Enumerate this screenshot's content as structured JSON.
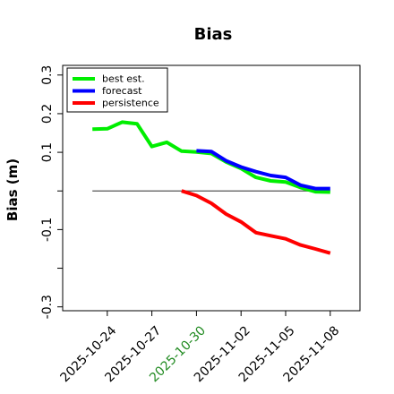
{
  "chart_data": {
    "type": "line",
    "title": "Bias",
    "xlabel": "",
    "ylabel": "Bias (m)",
    "x_ticks": [
      {
        "label": "2025-10-24",
        "date": "2025-10-24",
        "color": "#000000"
      },
      {
        "label": "2025-10-27",
        "date": "2025-10-27",
        "color": "#000000"
      },
      {
        "label": "2025-10-30",
        "date": "2025-10-30",
        "color": "#228B22"
      },
      {
        "label": "2025-11-02",
        "date": "2025-11-02",
        "color": "#000000"
      },
      {
        "label": "2025-11-05",
        "date": "2025-11-05",
        "color": "#000000"
      },
      {
        "label": "2025-11-08",
        "date": "2025-11-08",
        "color": "#000000"
      }
    ],
    "y_ticks": [
      {
        "label": "0.3",
        "value": 0.3
      },
      {
        "label": "0.2",
        "value": 0.2
      },
      {
        "label": "0.1",
        "value": 0.1
      },
      {
        "label": "",
        "value": 0.0
      },
      {
        "label": "-0.1",
        "value": -0.1
      },
      {
        "label": "",
        "value": -0.2
      },
      {
        "label": "-0.3",
        "value": -0.3
      }
    ],
    "xlim": [
      "2025-10-21",
      "2025-11-10"
    ],
    "ylim": [
      -0.31,
      0.325
    ],
    "grid": false,
    "legend_position": "top-left",
    "reference_line": {
      "y": 0.0,
      "x_start": "2025-10-23",
      "x_end": "2025-11-08",
      "color": "#555555"
    },
    "series": [
      {
        "name": "best est.",
        "color": "#00ee00",
        "x": [
          "2025-10-23",
          "2025-10-24",
          "2025-10-25",
          "2025-10-26",
          "2025-10-27",
          "2025-10-28",
          "2025-10-29",
          "2025-10-30",
          "2025-10-31",
          "2025-11-01",
          "2025-11-02",
          "2025-11-03",
          "2025-11-04",
          "2025-11-05",
          "2025-11-06",
          "2025-11-07",
          "2025-11-08"
        ],
        "y": [
          0.16,
          0.161,
          0.178,
          0.174,
          0.115,
          0.126,
          0.103,
          0.101,
          0.097,
          0.075,
          0.058,
          0.035,
          0.026,
          0.023,
          0.009,
          -0.002,
          -0.003
        ]
      },
      {
        "name": "forecast",
        "color": "#0000ff",
        "x": [
          "2025-10-30",
          "2025-10-31",
          "2025-11-01",
          "2025-11-02",
          "2025-11-03",
          "2025-11-04",
          "2025-11-05",
          "2025-11-06",
          "2025-11-07",
          "2025-11-08"
        ],
        "y": [
          0.104,
          0.102,
          0.078,
          0.062,
          0.05,
          0.04,
          0.035,
          0.015,
          0.006,
          0.006
        ]
      },
      {
        "name": "persistence",
        "color": "#ff0000",
        "x": [
          "2025-10-29",
          "2025-10-30",
          "2025-10-31",
          "2025-11-01",
          "2025-11-02",
          "2025-11-03",
          "2025-11-04",
          "2025-11-05",
          "2025-11-06",
          "2025-11-07",
          "2025-11-08"
        ],
        "y": [
          0.0,
          -0.012,
          -0.032,
          -0.06,
          -0.08,
          -0.108,
          -0.116,
          -0.124,
          -0.14,
          -0.15,
          -0.161
        ]
      }
    ]
  }
}
